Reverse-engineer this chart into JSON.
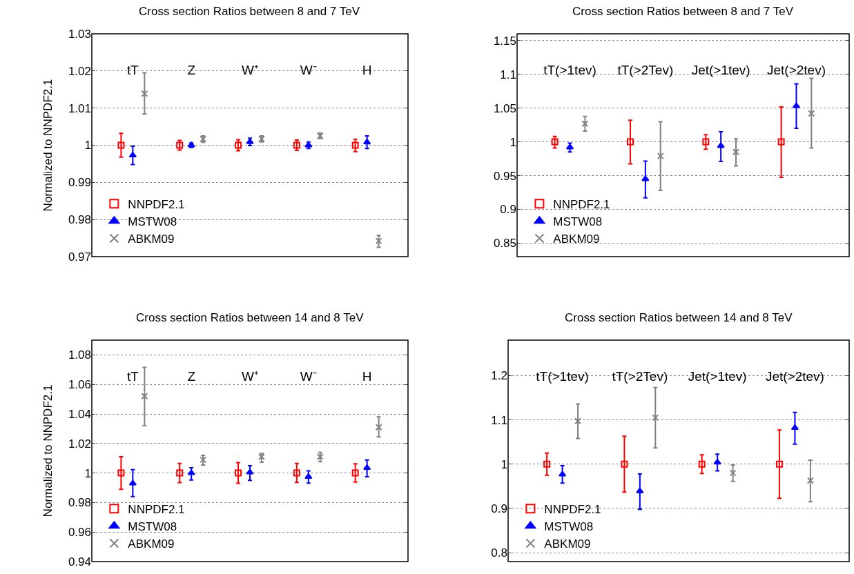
{
  "chart_data": [
    {
      "type": "scatter",
      "title": "Cross section Ratios between 8 and 7 TeV",
      "ylabel": "Normalized to NNPDF2.1",
      "categories": [
        "tT",
        "Z",
        "W⁺",
        "W⁻",
        "H"
      ],
      "ylim": [
        0.97,
        1.03
      ],
      "yticks": [
        0.97,
        0.98,
        0.99,
        1,
        1.01,
        1.02,
        1.03
      ],
      "grid": "y",
      "legend": "bottom left",
      "series": [
        {
          "name": "NNPDF2.1",
          "color": "#ff0000",
          "marker": "square",
          "values": [
            1.0,
            1.0,
            1.0,
            1.0,
            1.0
          ],
          "errors": [
            [
              0.9968,
              1.0032
            ],
            [
              0.9987,
              1.0013
            ],
            [
              0.9985,
              1.0015
            ],
            [
              0.9986,
              1.0014
            ],
            [
              0.9983,
              1.0016
            ]
          ]
        },
        {
          "name": "MSTW08",
          "color": "#0000ff",
          "marker": "triangle",
          "values": [
            0.9973,
            1.0,
            1.0009,
            1.0,
            1.0008
          ],
          "errors": [
            [
              0.9948,
              0.9997
            ],
            [
              0.9994,
              1.0006
            ],
            [
              0.9999,
              1.0019
            ],
            [
              0.9991,
              1.0009
            ],
            [
              0.9991,
              1.0025
            ]
          ]
        },
        {
          "name": "ABKM09",
          "color": "#808080",
          "marker": "cross",
          "values": [
            1.0139,
            1.0017,
            1.0017,
            1.0025,
            0.9742
          ],
          "errors": [
            [
              1.0084,
              1.0195
            ],
            [
              1.0008,
              1.0025
            ],
            [
              1.0009,
              1.0025
            ],
            [
              1.0018,
              1.0033
            ],
            [
              0.9725,
              0.9757
            ]
          ]
        }
      ]
    },
    {
      "type": "scatter",
      "title": "Cross section Ratios between 8 and 7 TeV",
      "categories": [
        "tT(>1tev)",
        "tT(>2Tev)",
        "Jet(>1tev)",
        "Jet(>2tev)"
      ],
      "ylim": [
        0.83,
        1.16
      ],
      "yticks": [
        0.85,
        0.9,
        0.95,
        1,
        1.05,
        1.1,
        1.15
      ],
      "grid": "y",
      "legend": "bottom left",
      "series": [
        {
          "name": "NNPDF2.1",
          "color": "#ff0000",
          "marker": "square",
          "values": [
            1.0,
            1.0,
            1.0,
            1.0
          ],
          "errors": [
            [
              0.991,
              1.008
            ],
            [
              0.9675,
              1.032
            ],
            [
              0.989,
              1.0106
            ],
            [
              0.9476,
              1.0517
            ]
          ]
        },
        {
          "name": "MSTW08",
          "color": "#0000ff",
          "marker": "triangle",
          "values": [
            0.992,
            0.945,
            0.994,
            1.053
          ],
          "errors": [
            [
              0.985,
              0.998
            ],
            [
              0.917,
              0.9716
            ],
            [
              0.971,
              1.015
            ],
            [
              1.02,
              1.086
            ]
          ]
        },
        {
          "name": "ABKM09",
          "color": "#808080",
          "marker": "cross",
          "values": [
            1.027,
            0.979,
            0.985,
            1.042
          ],
          "errors": [
            [
              1.016,
              1.0377
            ],
            [
              0.928,
              1.0298
            ],
            [
              0.9644,
              1.0045
            ],
            [
              0.991,
              1.094
            ]
          ]
        }
      ]
    },
    {
      "type": "scatter",
      "title": "Cross section Ratios between 14 and 8 TeV",
      "ylabel": "Normalized to NNPDF2.1",
      "categories": [
        "tT",
        "Z",
        "W⁺",
        "W⁻",
        "H"
      ],
      "ylim": [
        0.94,
        1.09
      ],
      "yticks": [
        0.94,
        0.96,
        0.98,
        1,
        1.02,
        1.04,
        1.06,
        1.08
      ],
      "grid": "y",
      "legend": "bottom left",
      "series": [
        {
          "name": "NNPDF2.1",
          "color": "#ff0000",
          "marker": "square",
          "values": [
            1.0,
            1.0,
            1.0,
            1.0,
            1.0
          ],
          "errors": [
            [
              0.989,
              1.011
            ],
            [
              0.9935,
              1.0065
            ],
            [
              0.993,
              1.007
            ],
            [
              0.9936,
              1.0065
            ],
            [
              0.9938,
              1.0062
            ]
          ]
        },
        {
          "name": "MSTW08",
          "color": "#0000ff",
          "marker": "triangle",
          "values": [
            0.993,
            1.0,
            1.0005,
            0.9975,
            1.0035
          ],
          "errors": [
            [
              0.984,
              1.0023
            ],
            [
              0.9953,
              1.0036
            ],
            [
              0.995,
              1.005
            ],
            [
              0.9932,
              1.0014
            ],
            [
              0.9975,
              1.0088
            ]
          ]
        },
        {
          "name": "ABKM09",
          "color": "#808080",
          "marker": "cross",
          "values": [
            1.052,
            1.009,
            1.011,
            1.011,
            1.031
          ],
          "errors": [
            [
              1.032,
              1.0715
            ],
            [
              1.0054,
              1.012
            ],
            [
              1.0073,
              1.0133
            ],
            [
              1.0076,
              1.014
            ],
            [
              1.0245,
              1.038
            ]
          ]
        }
      ]
    },
    {
      "type": "scatter",
      "title": "Cross section Ratios between 14 and 8 TeV",
      "categories": [
        "tT(>1tev)",
        "tT(>2Tev)",
        "Jet(>1tev)",
        "Jet(>2tev)"
      ],
      "ylim": [
        0.78,
        1.28
      ],
      "yticks": [
        0.8,
        0.9,
        1,
        1.1,
        1.2
      ],
      "grid": "y",
      "legend": "bottom left",
      "series": [
        {
          "name": "NNPDF2.1",
          "color": "#ff0000",
          "marker": "square",
          "values": [
            1.0,
            1.0,
            1.0,
            1.0
          ],
          "errors": [
            [
              0.975,
              1.025
            ],
            [
              0.937,
              1.063
            ],
            [
              0.979,
              1.021
            ],
            [
              0.923,
              1.077
            ]
          ]
        },
        {
          "name": "MSTW08",
          "color": "#0000ff",
          "marker": "triangle",
          "values": [
            0.977,
            0.939,
            1.004,
            1.082
          ],
          "errors": [
            [
              0.957,
              0.9964
            ],
            [
              0.898,
              0.978
            ],
            [
              0.985,
              1.0226
            ],
            [
              1.045,
              1.117
            ]
          ]
        },
        {
          "name": "ABKM09",
          "color": "#808080",
          "marker": "cross",
          "values": [
            1.097,
            1.105,
            0.98,
            0.963
          ],
          "errors": [
            [
              1.058,
              1.136
            ],
            [
              1.0365,
              1.173
            ],
            [
              0.961,
              0.998
            ],
            [
              0.915,
              1.009
            ]
          ]
        }
      ]
    }
  ]
}
